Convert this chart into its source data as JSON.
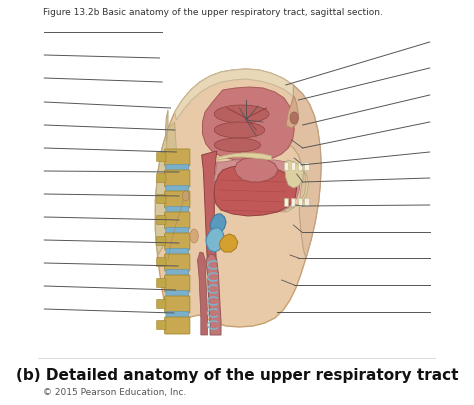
{
  "top_caption": "Figure 13.2b Basic anatomy of the upper respiratory tract, sagittal section.",
  "bottom_title": "(b) Detailed anatomy of the upper respiratory tract",
  "copyright": "© 2015 Pearson Education, Inc.",
  "bg_color": "#ffffff",
  "title_fontsize": 11,
  "caption_fontsize": 6.5,
  "copyright_fontsize": 6.5,
  "skin_outer": "#e8c9a8",
  "skin_edge": "#c8a070",
  "skull_color": "#e0cab0",
  "skull_edge": "#c0aa90",
  "nasal_color": "#c87070",
  "muscle_dark": "#b84848",
  "muscle_mid": "#c86060",
  "muscle_light": "#d08080",
  "tongue_color": "#c05858",
  "spine_bone": "#c8a850",
  "spine_edge": "#a08830",
  "disc_color": "#7ab0cc",
  "disc_edge": "#5a90ac",
  "cartilage_color": "#7ab8d0",
  "epiglottis_color": "#5a9abf",
  "thyroid_yellow": "#d4a030",
  "trachea_color": "#c07878",
  "line_color": "#555555",
  "line_lw": 0.7,
  "face_lip_color": "#e0a090",
  "jaw_bone_color": "#ddd0a0",
  "throat_pink": "#d09090",
  "soft_tissue_bg": "#d4b898"
}
